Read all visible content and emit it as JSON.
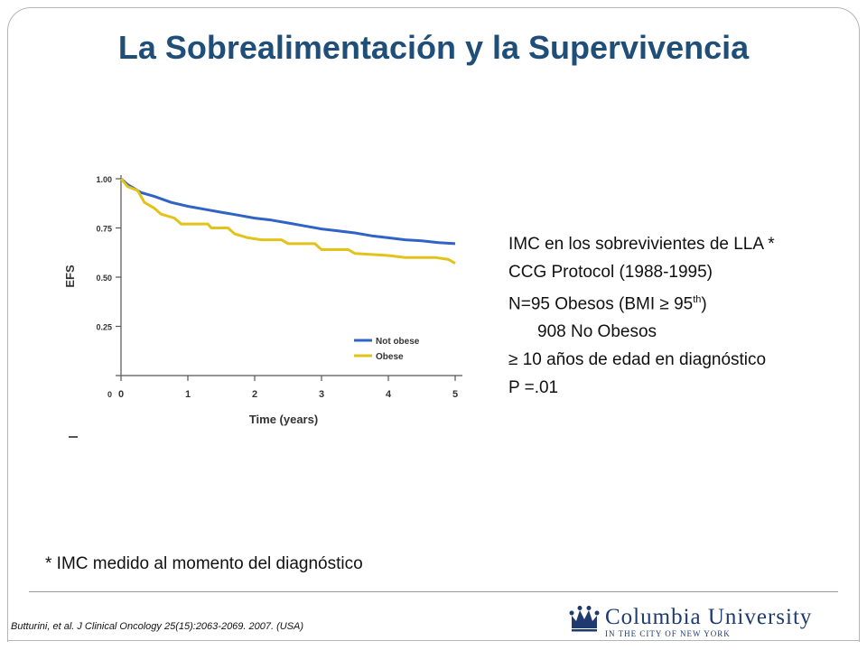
{
  "slide": {
    "title": "La Sobrealimentación y la Supervivencia",
    "footnote": "* IMC medido al momento del diagnóstico",
    "citation": "Butturini, et al.  J Clinical Oncology 25(15):2063-2069.   2007. (USA)"
  },
  "info": {
    "line1": "IMC en los sobrevivientes de LLA *",
    "line2": "CCG Protocol (1988-1995)",
    "line3_pre": "N=95 Obesos (BMI ≥ 95",
    "line3_sup": "th",
    "line3_post": ")",
    "line4": "908 No Obesos",
    "line5": "≥ 10 años de edad en diagnóstico",
    "line6": "P =.01"
  },
  "logo": {
    "name": "Columbia University",
    "subtitle": "IN THE CITY OF NEW YORK",
    "color": "#1f3a6e"
  },
  "chart_data": {
    "type": "line",
    "xlabel": "Time (years)",
    "ylabel": "EFS",
    "xlim": [
      0,
      5
    ],
    "ylim": [
      0,
      1.0
    ],
    "x_ticks": [
      "0",
      "1",
      "2",
      "3",
      "4",
      "5"
    ],
    "y_ticks": [
      "0",
      "0.25",
      "0.50",
      "0.75",
      "1.00"
    ],
    "legend_position": "bottom-right",
    "series": [
      {
        "name": "Not obese",
        "color": "#2f63c6",
        "points": [
          [
            0,
            1.0
          ],
          [
            0.1,
            0.97
          ],
          [
            0.2,
            0.95
          ],
          [
            0.3,
            0.93
          ],
          [
            0.5,
            0.91
          ],
          [
            0.75,
            0.88
          ],
          [
            1,
            0.86
          ],
          [
            1.25,
            0.845
          ],
          [
            1.5,
            0.83
          ],
          [
            1.75,
            0.815
          ],
          [
            2,
            0.8
          ],
          [
            2.25,
            0.79
          ],
          [
            2.5,
            0.775
          ],
          [
            2.75,
            0.76
          ],
          [
            3,
            0.745
          ],
          [
            3.25,
            0.735
          ],
          [
            3.5,
            0.725
          ],
          [
            3.75,
            0.71
          ],
          [
            4,
            0.7
          ],
          [
            4.25,
            0.69
          ],
          [
            4.5,
            0.685
          ],
          [
            4.75,
            0.675
          ],
          [
            5,
            0.67
          ]
        ]
      },
      {
        "name": "Obese",
        "color": "#e3c21a",
        "points": [
          [
            0,
            1.0
          ],
          [
            0.1,
            0.96
          ],
          [
            0.25,
            0.94
          ],
          [
            0.35,
            0.88
          ],
          [
            0.5,
            0.85
          ],
          [
            0.6,
            0.82
          ],
          [
            0.8,
            0.8
          ],
          [
            0.9,
            0.77
          ],
          [
            1,
            0.77
          ],
          [
            1.3,
            0.77
          ],
          [
            1.35,
            0.75
          ],
          [
            1.6,
            0.75
          ],
          [
            1.7,
            0.72
          ],
          [
            1.9,
            0.7
          ],
          [
            2.1,
            0.69
          ],
          [
            2.4,
            0.69
          ],
          [
            2.5,
            0.67
          ],
          [
            2.9,
            0.67
          ],
          [
            3,
            0.64
          ],
          [
            3.4,
            0.64
          ],
          [
            3.5,
            0.62
          ],
          [
            4,
            0.61
          ],
          [
            4.25,
            0.6
          ],
          [
            4.7,
            0.6
          ],
          [
            4.9,
            0.59
          ],
          [
            5,
            0.57
          ]
        ]
      }
    ]
  }
}
